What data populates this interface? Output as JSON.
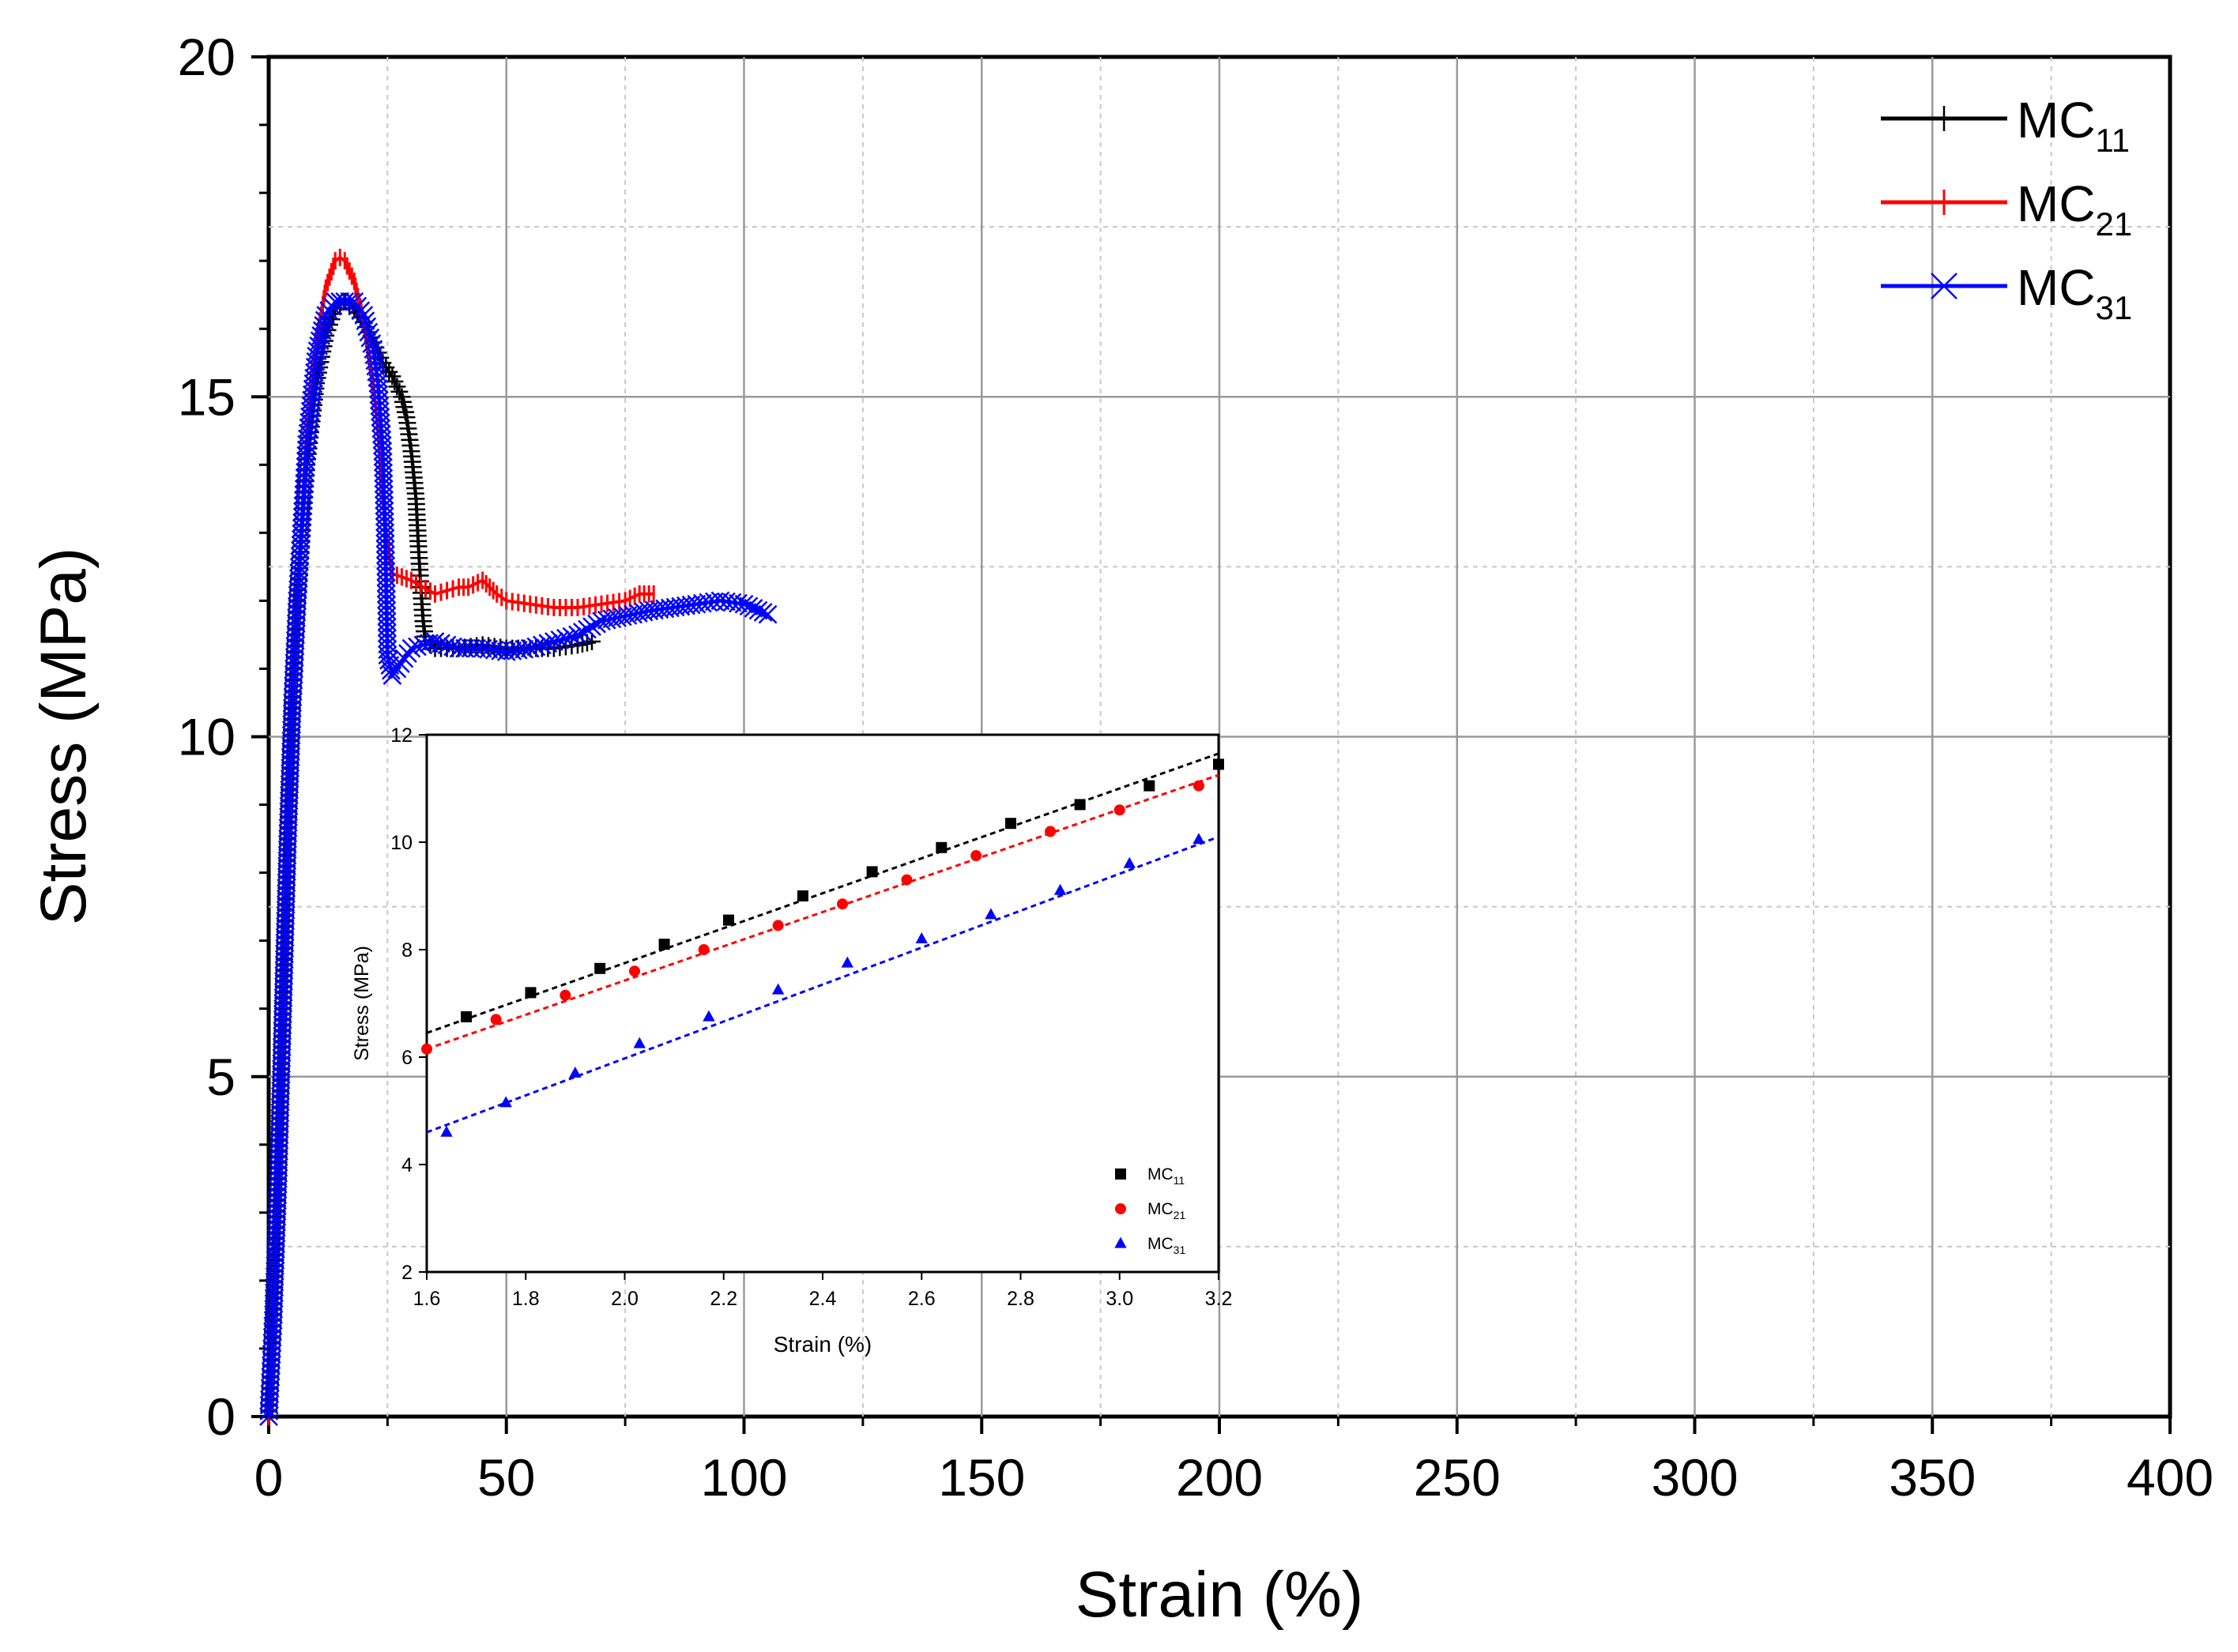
{
  "chart_data": [
    {
      "type": "line",
      "title": "",
      "xlabel": "Strain (%)",
      "ylabel": "Stress (MPa)",
      "xlim": [
        0,
        400
      ],
      "ylim": [
        0,
        20
      ],
      "x_ticks": [
        "0",
        "50",
        "100",
        "150",
        "200",
        "250",
        "300",
        "350",
        "400"
      ],
      "y_ticks": [
        "0",
        "5",
        "10",
        "15",
        "20"
      ],
      "grid": true,
      "legend_position": "top-right",
      "legend": [
        {
          "base": "MC",
          "sub": "11",
          "color": "#000000",
          "marker": "plus"
        },
        {
          "base": "MC",
          "sub": "21",
          "color": "#ff0000",
          "marker": "bar"
        },
        {
          "base": "MC",
          "sub": "31",
          "color": "#0000ff",
          "marker": "x"
        }
      ],
      "series": [
        {
          "name": "MC11",
          "color": "#000000",
          "x": [
            0,
            1,
            2,
            3,
            4,
            5,
            6,
            8,
            10,
            12,
            14,
            16,
            18,
            20,
            22,
            24,
            26,
            28,
            29,
            30,
            31,
            31.5,
            32,
            32.5,
            33,
            35,
            40,
            45,
            50,
            55,
            60,
            65,
            68
          ],
          "y": [
            0,
            1.5,
            3.5,
            6,
            8.5,
            10.5,
            12,
            14,
            15.2,
            15.9,
            16.3,
            16.4,
            16.3,
            16.1,
            15.8,
            15.5,
            15.3,
            15,
            14.7,
            14.2,
            13.5,
            12.8,
            12.2,
            11.7,
            11.4,
            11.3,
            11.3,
            11.35,
            11.3,
            11.3,
            11.3,
            11.35,
            11.4
          ]
        },
        {
          "name": "MC21",
          "color": "#ff0000",
          "x": [
            0,
            1,
            2,
            3,
            4,
            5,
            6,
            8,
            10,
            12,
            14,
            15,
            16,
            18,
            20,
            22,
            23,
            24,
            25,
            26,
            30,
            35,
            40,
            42,
            45,
            48,
            50,
            55,
            60,
            65,
            70,
            75,
            78,
            81
          ],
          "y": [
            0,
            1.5,
            3.5,
            6,
            8.5,
            10.5,
            12,
            14.5,
            15.8,
            16.6,
            17.0,
            17.05,
            17.0,
            16.7,
            16.1,
            15.2,
            14.5,
            13.5,
            12.8,
            12.4,
            12.3,
            12.1,
            12.2,
            12.2,
            12.3,
            12.1,
            12.0,
            11.95,
            11.9,
            11.9,
            11.95,
            12.0,
            12.1,
            12.1
          ]
        },
        {
          "name": "MC31",
          "color": "#0000ff",
          "x": [
            0,
            1,
            2,
            3,
            4,
            5,
            6,
            8,
            10,
            12,
            14,
            16,
            18,
            20,
            22,
            23,
            24,
            24.5,
            25,
            26,
            27,
            30,
            35,
            40,
            45,
            50,
            55,
            60,
            65,
            70,
            80,
            90,
            95,
            100,
            105
          ],
          "y": [
            0,
            1.5,
            3.5,
            6,
            8.5,
            10.5,
            12,
            14.3,
            15.6,
            16.2,
            16.4,
            16.4,
            16.4,
            16.2,
            15.7,
            15.2,
            14.2,
            13.0,
            11.2,
            10.9,
            11.0,
            11.3,
            11.4,
            11.3,
            11.3,
            11.25,
            11.3,
            11.4,
            11.5,
            11.7,
            11.85,
            11.95,
            12.0,
            11.95,
            11.8
          ]
        }
      ]
    },
    {
      "type": "scatter",
      "title": "",
      "xlabel": "Strain (%)",
      "ylabel": "Stress (MPa)",
      "xlim": [
        1.6,
        3.2
      ],
      "ylim": [
        2,
        12
      ],
      "x_ticks": [
        "1.6",
        "1.8",
        "2.0",
        "2.2",
        "2.4",
        "2.6",
        "2.8",
        "3.0",
        "3.2"
      ],
      "y_ticks": [
        "2",
        "4",
        "6",
        "8",
        "10",
        "12"
      ],
      "grid": false,
      "legend_position": "bottom-right",
      "legend": [
        {
          "base": "MC",
          "sub": "11",
          "color": "#000000",
          "marker": "square"
        },
        {
          "base": "MC",
          "sub": "21",
          "color": "#ff0000",
          "marker": "circle"
        },
        {
          "base": "MC",
          "sub": "31",
          "color": "#0000ff",
          "marker": "triangle"
        }
      ],
      "series": [
        {
          "name": "MC11",
          "color": "#000000",
          "marker": "square",
          "x": [
            1.68,
            1.81,
            1.95,
            2.08,
            2.21,
            2.36,
            2.5,
            2.64,
            2.78,
            2.92,
            3.06,
            3.2
          ],
          "y": [
            6.75,
            7.2,
            7.65,
            8.1,
            8.55,
            9.0,
            9.45,
            9.9,
            10.35,
            10.7,
            11.05,
            11.45
          ],
          "fit": [
            [
              1.6,
              6.45
            ],
            [
              3.2,
              11.65
            ]
          ]
        },
        {
          "name": "MC21",
          "color": "#ff0000",
          "marker": "circle",
          "x": [
            1.6,
            1.74,
            1.88,
            2.02,
            2.16,
            2.31,
            2.44,
            2.57,
            2.71,
            2.86,
            3.0,
            3.16
          ],
          "y": [
            6.15,
            6.7,
            7.15,
            7.6,
            8.0,
            8.45,
            8.85,
            9.3,
            9.75,
            10.2,
            10.6,
            11.05
          ],
          "fit": [
            [
              1.6,
              6.15
            ],
            [
              3.2,
              11.25
            ]
          ]
        },
        {
          "name": "MC31",
          "color": "#0000ff",
          "marker": "triangle",
          "x": [
            1.64,
            1.76,
            1.9,
            2.03,
            2.17,
            2.31,
            2.45,
            2.6,
            2.74,
            2.88,
            3.02,
            3.16
          ],
          "y": [
            4.6,
            5.15,
            5.7,
            6.25,
            6.75,
            7.25,
            7.75,
            8.2,
            8.65,
            9.1,
            9.6,
            10.05
          ],
          "fit": [
            [
              1.6,
              4.6
            ],
            [
              3.2,
              10.1
            ]
          ]
        }
      ]
    }
  ]
}
